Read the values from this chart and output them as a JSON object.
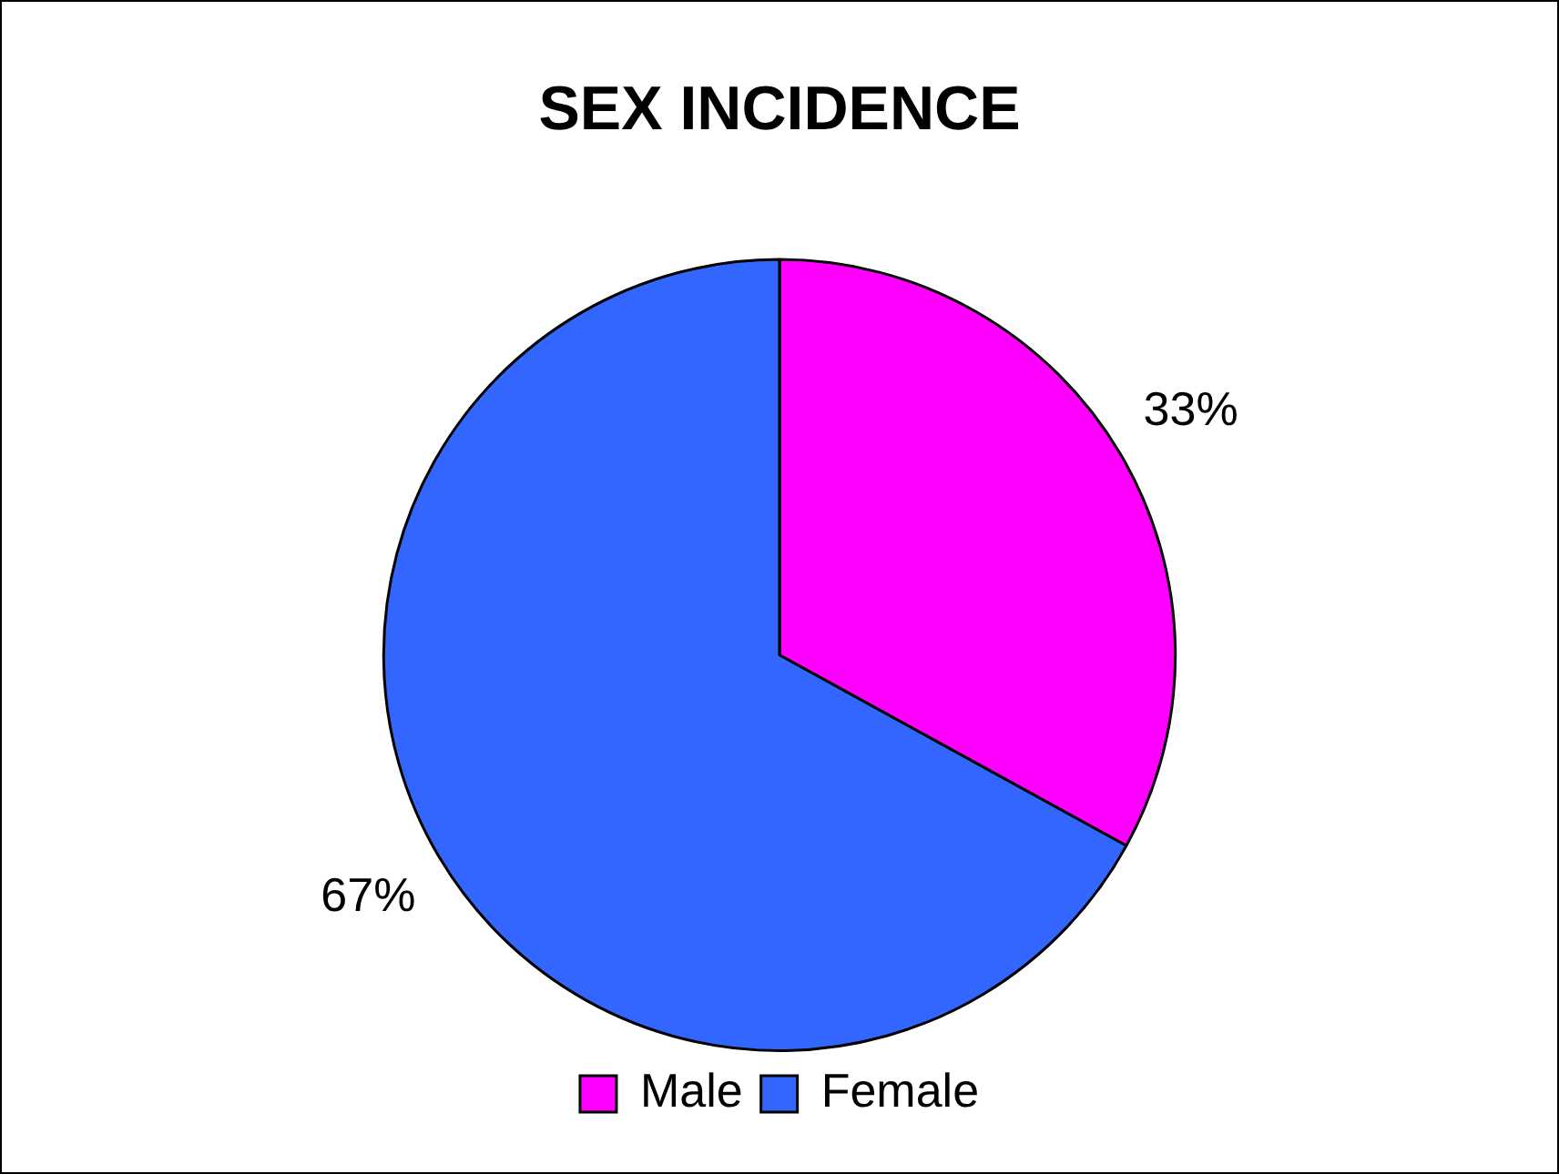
{
  "chart_data": {
    "type": "pie",
    "title": "SEX INCIDENCE",
    "categories": [
      "Male",
      "Female"
    ],
    "values": [
      33,
      67
    ],
    "value_labels": [
      "33%",
      "67%"
    ],
    "colors": [
      "#ff00ff",
      "#3366ff"
    ],
    "legend": "bottom"
  }
}
